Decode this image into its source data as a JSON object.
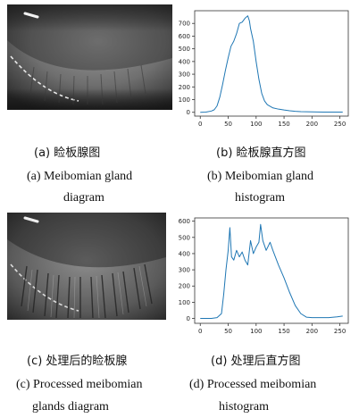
{
  "captions": {
    "a_cn": "(a)  睑板腺图",
    "b_cn": "(b)  睑板腺直方图",
    "a_en_1": "(a) Meibomian gland",
    "a_en_2": "diagram",
    "b_en_1": "(b) Meibomian gland",
    "b_en_2": "histogram",
    "c_cn": "(c)  处理后的睑板腺",
    "d_cn": "(d)  处理后直方图",
    "c_en_1": "(c) Processed meibomian",
    "c_en_2": "glands diagram",
    "d_en_1": "(d) Processed meibomian",
    "d_en_2": "histogram"
  },
  "chart_data": [
    {
      "type": "line",
      "x_ticks": [
        0,
        50,
        100,
        150,
        200,
        250
      ],
      "y_ticks": [
        0,
        100,
        200,
        300,
        400,
        500,
        600,
        700
      ],
      "xlim": [
        -10,
        265
      ],
      "ylim": [
        -30,
        800
      ],
      "line_color": "#1f77b4",
      "x": [
        0,
        10,
        20,
        25,
        30,
        35,
        40,
        45,
        50,
        55,
        60,
        65,
        70,
        75,
        80,
        85,
        88,
        90,
        95,
        100,
        105,
        110,
        115,
        120,
        130,
        140,
        150,
        160,
        170,
        180,
        200,
        220,
        250,
        255
      ],
      "y": [
        0,
        2,
        10,
        20,
        50,
        120,
        220,
        330,
        430,
        520,
        560,
        620,
        700,
        710,
        740,
        760,
        720,
        660,
        560,
        400,
        260,
        150,
        90,
        60,
        35,
        25,
        18,
        12,
        8,
        5,
        3,
        2,
        2,
        2
      ]
    },
    {
      "type": "line",
      "x_ticks": [
        0,
        50,
        100,
        150,
        200,
        250
      ],
      "y_ticks": [
        0,
        100,
        200,
        300,
        400,
        500,
        600
      ],
      "xlim": [
        -10,
        265
      ],
      "ylim": [
        -30,
        620
      ],
      "line_color": "#1f77b4",
      "x": [
        0,
        20,
        30,
        38,
        42,
        46,
        50,
        53,
        56,
        60,
        65,
        70,
        75,
        80,
        85,
        90,
        95,
        100,
        105,
        108,
        112,
        118,
        125,
        130,
        140,
        150,
        160,
        170,
        180,
        190,
        200,
        215,
        230,
        245,
        255
      ],
      "y": [
        0,
        0,
        5,
        30,
        150,
        300,
        420,
        560,
        380,
        360,
        420,
        380,
        410,
        360,
        330,
        480,
        400,
        440,
        470,
        580,
        480,
        420,
        470,
        420,
        330,
        250,
        160,
        80,
        30,
        8,
        5,
        5,
        5,
        10,
        15
      ]
    }
  ]
}
